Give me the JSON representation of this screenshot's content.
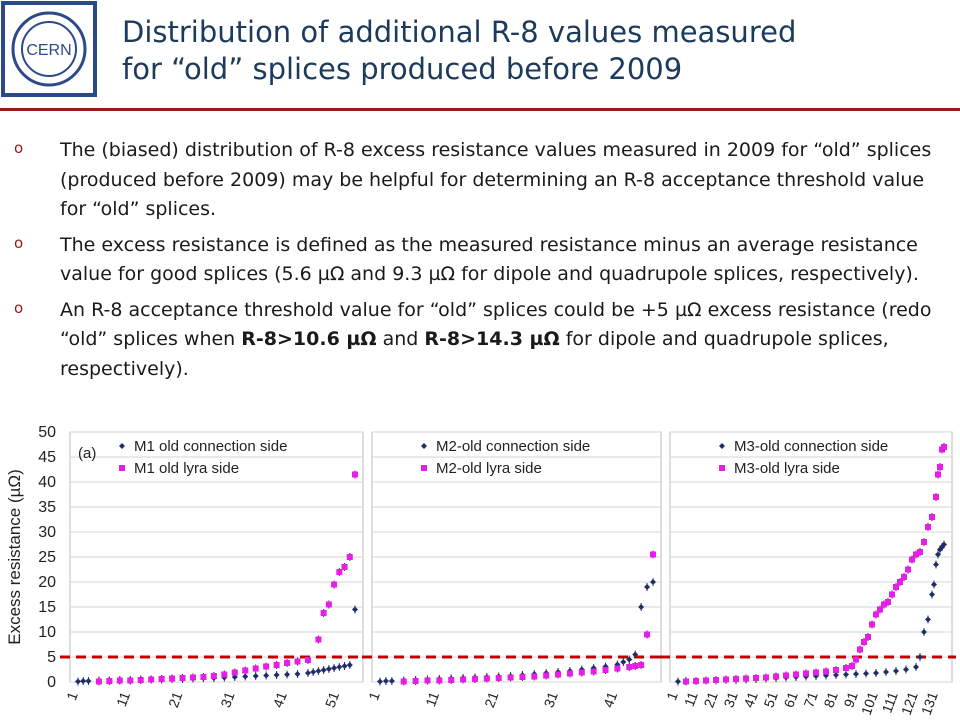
{
  "logo": {
    "text": "CERN"
  },
  "title": {
    "line1": "Distribution of additional R-8 values measured",
    "line2": "for “old” splices produced before 2009"
  },
  "bullets": [
    {
      "text": "The (biased) distribution of R-8 excess resistance values measured in 2009 for “old” splices (produced before 2009) may be helpful for determining an R-8 acceptance threshold value for “old” splices."
    },
    {
      "text": "The excess resistance is defined as the measured resistance minus an average resistance value for good splices (5.6 µΩ and 9.3 µΩ for dipole and quadrupole splices, respectively)."
    },
    {
      "pre": "An R-8 acceptance threshold value for “old” splices could be +5 µΩ excess resistance (redo “old” splices when ",
      "bold1": "R-8>10.6 µΩ",
      "mid": " and ",
      "bold2": "R-8>14.3 µΩ",
      "post": " for dipole and quadrupole splices, respectively)."
    }
  ],
  "colors": {
    "connection": "#1f2d6b",
    "lyra": "#e81ee8",
    "threshold": "#c00000",
    "marker": "#a01818",
    "title": "#1b3a5c",
    "rule": "#9a1a1a"
  },
  "chart_data": [
    {
      "type": "scatter",
      "panel_label": "(a)",
      "ylabel": "Excess resistance (µΩ)",
      "ylim": [
        0,
        50
      ],
      "yticks": [
        0,
        5,
        10,
        15,
        20,
        25,
        30,
        35,
        40,
        45,
        50
      ],
      "xlim": [
        1,
        54
      ],
      "xticks": [
        1,
        11,
        21,
        31,
        41,
        51
      ],
      "threshold": 5,
      "series": [
        {
          "name": "M1 old connection side",
          "x": [
            1,
            2,
            3,
            5,
            7,
            9,
            11,
            13,
            15,
            17,
            19,
            21,
            23,
            25,
            27,
            29,
            31,
            33,
            35,
            37,
            39,
            41,
            43,
            45,
            46,
            47,
            48,
            49,
            50,
            51,
            52,
            53,
            54
          ],
          "y": [
            0.1,
            0.2,
            0.2,
            0.3,
            0.3,
            0.4,
            0.4,
            0.5,
            0.5,
            0.5,
            0.6,
            0.6,
            0.7,
            0.8,
            0.8,
            0.9,
            1.0,
            1.1,
            1.2,
            1.3,
            1.4,
            1.5,
            1.6,
            1.8,
            2.0,
            2.2,
            2.4,
            2.6,
            2.8,
            3.0,
            3.2,
            3.4,
            14.5
          ]
        },
        {
          "name": "M1 old lyra side",
          "x": [
            5,
            7,
            9,
            11,
            13,
            15,
            17,
            19,
            21,
            23,
            25,
            27,
            29,
            31,
            33,
            35,
            37,
            39,
            41,
            43,
            45,
            47,
            48,
            49,
            50,
            51,
            52,
            53,
            54
          ],
          "y": [
            0.1,
            0.2,
            0.3,
            0.3,
            0.4,
            0.5,
            0.6,
            0.7,
            0.8,
            0.9,
            1.0,
            1.2,
            1.5,
            1.9,
            2.3,
            2.7,
            3.1,
            3.4,
            3.8,
            4.1,
            4.4,
            8.5,
            13.8,
            15.5,
            19.5,
            22.0,
            23.0,
            25.0,
            41.5
          ]
        }
      ]
    },
    {
      "type": "scatter",
      "ylim": [
        0,
        50
      ],
      "xlim": [
        1,
        47
      ],
      "xticks": [
        1,
        11,
        21,
        31,
        41
      ],
      "threshold": 5,
      "series": [
        {
          "name": "M2-old connection side",
          "x": [
            1,
            2,
            3,
            5,
            7,
            9,
            11,
            13,
            15,
            17,
            19,
            21,
            23,
            25,
            27,
            29,
            31,
            33,
            35,
            37,
            39,
            41,
            42,
            43,
            44,
            45,
            46,
            47
          ],
          "y": [
            0.1,
            0.2,
            0.2,
            0.3,
            0.4,
            0.5,
            0.6,
            0.7,
            0.8,
            0.9,
            1.0,
            1.1,
            1.2,
            1.4,
            1.6,
            1.8,
            2.0,
            2.2,
            2.5,
            2.8,
            3.1,
            3.5,
            4.0,
            4.5,
            5.5,
            15.0,
            19.0,
            20.0
          ]
        },
        {
          "name": "M2-old lyra side",
          "x": [
            5,
            7,
            9,
            11,
            13,
            15,
            17,
            19,
            21,
            23,
            25,
            27,
            29,
            31,
            33,
            35,
            37,
            39,
            41,
            43,
            44,
            45,
            46,
            47
          ],
          "y": [
            0.1,
            0.2,
            0.3,
            0.3,
            0.4,
            0.5,
            0.6,
            0.7,
            0.8,
            0.9,
            1.0,
            1.1,
            1.3,
            1.5,
            1.7,
            1.9,
            2.1,
            2.4,
            2.7,
            3.0,
            3.2,
            3.4,
            9.5,
            25.5
          ]
        }
      ]
    },
    {
      "type": "scatter",
      "ylim": [
        0,
        50
      ],
      "xlim": [
        1,
        134
      ],
      "xticks": [
        1,
        11,
        21,
        31,
        41,
        51,
        61,
        71,
        81,
        91,
        101,
        111,
        121,
        131
      ],
      "threshold": 5,
      "series": [
        {
          "name": "M3-old connection side",
          "x": [
            1,
            5,
            10,
            15,
            20,
            25,
            30,
            35,
            40,
            45,
            50,
            55,
            60,
            65,
            70,
            75,
            80,
            85,
            90,
            95,
            100,
            105,
            110,
            115,
            120,
            122,
            124,
            126,
            128,
            129,
            130,
            131,
            132,
            133,
            134
          ],
          "y": [
            0.1,
            0.2,
            0.2,
            0.3,
            0.3,
            0.4,
            0.4,
            0.5,
            0.6,
            0.7,
            0.8,
            0.9,
            1.0,
            1.1,
            1.2,
            1.3,
            1.4,
            1.5,
            1.6,
            1.7,
            1.8,
            2.0,
            2.2,
            2.5,
            3.0,
            5.0,
            10.0,
            12.5,
            17.5,
            19.5,
            23.5,
            25.5,
            26.5,
            27.0,
            27.5
          ]
        },
        {
          "name": "M3-old lyra side",
          "x": [
            5,
            10,
            15,
            20,
            25,
            30,
            35,
            40,
            45,
            50,
            55,
            60,
            65,
            70,
            75,
            80,
            85,
            88,
            90,
            92,
            94,
            96,
            98,
            100,
            102,
            104,
            106,
            108,
            110,
            112,
            114,
            116,
            118,
            120,
            122,
            124,
            126,
            128,
            130,
            131,
            132,
            133,
            134
          ],
          "y": [
            0.1,
            0.2,
            0.3,
            0.4,
            0.5,
            0.6,
            0.7,
            0.8,
            0.9,
            1.1,
            1.3,
            1.5,
            1.7,
            1.9,
            2.1,
            2.4,
            2.8,
            3.2,
            4.5,
            6.5,
            8.0,
            9.0,
            11.5,
            13.5,
            14.5,
            15.5,
            16.0,
            17.5,
            19.0,
            20.0,
            21.0,
            22.5,
            24.5,
            25.5,
            26.0,
            28.0,
            31.0,
            33.0,
            37.0,
            41.5,
            43.0,
            46.5,
            47.0
          ]
        }
      ]
    }
  ]
}
